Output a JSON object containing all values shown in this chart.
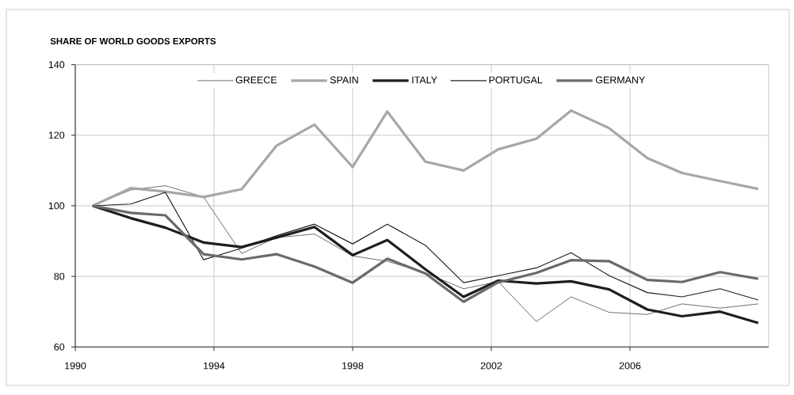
{
  "chart_data": {
    "type": "line",
    "title": "SHARE OF WORLD GOODS EXPORTS",
    "x": [
      1990.5,
      1991.6,
      1992.6,
      1993.7,
      1994.8,
      1995.8,
      1996.9,
      1998.0,
      1999.0,
      2000.1,
      2001.2,
      2002.2,
      2003.3,
      2004.3,
      2005.4,
      2006.5,
      2007.5,
      2008.6,
      2009.7
    ],
    "series": [
      {
        "name": "GREECE",
        "color": "#6e6e6e",
        "values": [
          100,
          104.5,
          105.7,
          102.5,
          86.5,
          91,
          92,
          85.8,
          84.3,
          81,
          76.5,
          78.5,
          67.2,
          74.2,
          69.8,
          69.2,
          72.2,
          71,
          72.2
        ]
      },
      {
        "name": "SPAIN",
        "color": "#a7a7a8",
        "values": [
          100,
          105,
          104,
          102.5,
          104.7,
          117,
          123,
          111,
          126.7,
          112.5,
          110,
          116,
          119,
          127,
          122,
          113.5,
          109.3,
          107,
          104.8
        ]
      },
      {
        "name": "ITALY",
        "color": "#1e1e1e",
        "values": [
          100,
          96.5,
          93.8,
          89.6,
          88.3,
          91,
          94,
          86,
          90.3,
          82,
          74.2,
          78.8,
          78,
          78.6,
          76.3,
          70.6,
          68.7,
          70,
          66.8
        ]
      },
      {
        "name": "PORTUGAL",
        "color": "#1e1e1e",
        "values": [
          100,
          100.5,
          103.8,
          84.7,
          88,
          91.5,
          94.8,
          89.2,
          94.8,
          88.8,
          78.2,
          80.2,
          82.4,
          86.7,
          80.2,
          75.4,
          74.2,
          76.5,
          73.3
        ]
      },
      {
        "name": "GERMANY",
        "color": "#6a6a6b",
        "values": [
          100,
          98,
          97.3,
          86.3,
          84.8,
          86.3,
          82.8,
          78.2,
          85,
          80.8,
          72.8,
          78.3,
          81,
          84.6,
          84.3,
          79,
          78.4,
          81.2,
          79.3
        ]
      }
    ],
    "xlim": [
      1990,
      2010
    ],
    "ylim": [
      60,
      140
    ],
    "xticks": [
      1990,
      1994,
      1998,
      2002,
      2006
    ],
    "yticks": [
      60,
      80,
      100,
      120,
      140
    ],
    "grid": true,
    "legend": "top"
  }
}
